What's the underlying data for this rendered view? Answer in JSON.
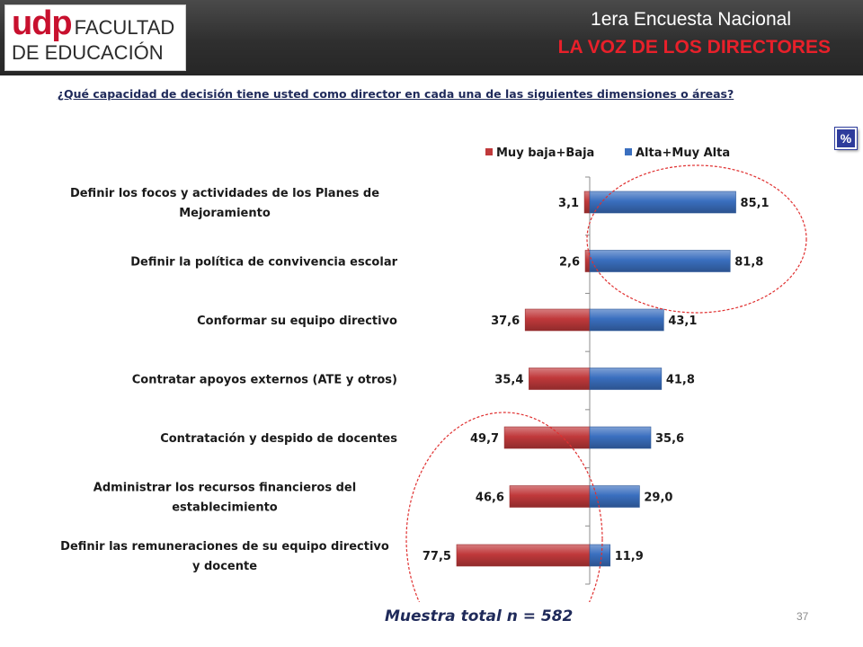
{
  "header": {
    "logo_udp": "udp",
    "logo_line1": "FACULTAD",
    "logo_line2": "DE EDUCACIÓN",
    "title_line1": "1era Encuesta Nacional",
    "title_line2": "LA VOZ DE LOS DIRECTORES"
  },
  "question": "¿Qué capacidad de decisión tiene usted como director en cada una de las siguientes dimensiones o áreas?",
  "badge": "%",
  "sample_label": "Muestra total n = 582",
  "page_number": "37",
  "colors": {
    "header_bg": "#2f2f2f",
    "logo_red": "#c8102e",
    "title_red": "#e8202a",
    "question_text": "#1f2a5a",
    "badge_blue": "#2e3c9c",
    "series_low": "#c0393b",
    "series_high": "#3a6fbf",
    "highlight_circle": "#e03030"
  },
  "chart_data": {
    "type": "bar",
    "orientation": "horizontal-diverging",
    "title": "",
    "xlabel": "",
    "ylabel": "",
    "xlim": [
      -90,
      90
    ],
    "grid": false,
    "legend_position": "top",
    "categories": [
      [
        "Definir los focos y actividades de los Planes de",
        "Mejoramiento"
      ],
      [
        "Definir la política de convivencia escolar"
      ],
      [
        "Conformar su equipo directivo"
      ],
      [
        "Contratar apoyos externos (ATE y otros)"
      ],
      [
        "Contratación y despido de docentes"
      ],
      [
        "Administrar los recursos financieros del",
        "establecimiento"
      ],
      [
        "Definir las remuneraciones de su equipo directivo",
        "y docente"
      ]
    ],
    "series": [
      {
        "name": "Muy baja+Baja",
        "color": "#c0393b",
        "values": [
          3.1,
          2.6,
          37.6,
          35.4,
          49.7,
          46.6,
          77.5
        ],
        "labels": [
          "3,1",
          "2,6",
          "37,6",
          "35,4",
          "49,7",
          "46,6",
          "77,5"
        ]
      },
      {
        "name": "Alta+Muy Alta",
        "color": "#3a6fbf",
        "values": [
          85.1,
          81.8,
          43.1,
          41.8,
          35.6,
          29.0,
          11.9
        ],
        "labels": [
          "85,1",
          "81,8",
          "43,1",
          "41,8",
          "35,6",
          "29,0",
          "11,9"
        ]
      }
    ],
    "highlight_groups": [
      {
        "categories": [
          0,
          1
        ],
        "style": "dashed-circle"
      },
      {
        "categories": [
          4,
          5,
          6
        ],
        "style": "dashed-circle"
      }
    ]
  }
}
